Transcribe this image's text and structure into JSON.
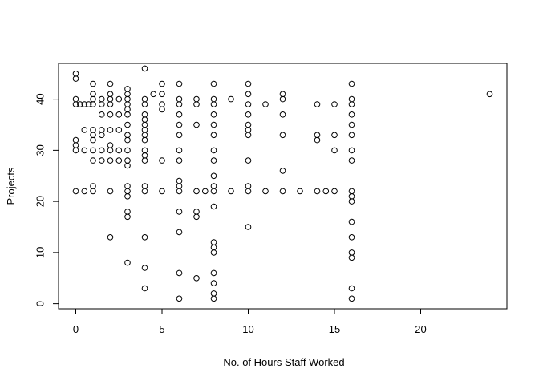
{
  "chart_data": {
    "type": "scatter",
    "title": "",
    "xlabel": "No. of Hours Staff Worked",
    "ylabel": "Projects",
    "xlim": [
      -1,
      25
    ],
    "ylim": [
      -1,
      47
    ],
    "xticks": [
      0,
      5,
      10,
      15,
      20
    ],
    "yticks": [
      0,
      10,
      20,
      30,
      40
    ],
    "grid": false,
    "legend": "none",
    "points": [
      [
        0,
        45
      ],
      [
        0,
        44
      ],
      [
        0,
        40
      ],
      [
        0,
        39
      ],
      [
        0,
        32
      ],
      [
        0,
        31
      ],
      [
        0,
        30
      ],
      [
        0,
        22
      ],
      [
        0.25,
        39
      ],
      [
        0.5,
        39
      ],
      [
        0.5,
        34
      ],
      [
        0.5,
        30
      ],
      [
        0.5,
        22
      ],
      [
        0.75,
        39
      ],
      [
        1,
        43
      ],
      [
        1,
        41
      ],
      [
        1,
        40
      ],
      [
        1,
        39
      ],
      [
        1,
        34
      ],
      [
        1,
        33
      ],
      [
        1,
        32
      ],
      [
        1,
        30
      ],
      [
        1,
        28
      ],
      [
        1,
        23
      ],
      [
        1,
        22
      ],
      [
        1.5,
        40
      ],
      [
        1.5,
        39
      ],
      [
        1.5,
        37
      ],
      [
        1.5,
        34
      ],
      [
        1.5,
        33
      ],
      [
        1.5,
        30
      ],
      [
        1.5,
        28
      ],
      [
        2,
        43
      ],
      [
        2,
        41
      ],
      [
        2,
        40
      ],
      [
        2,
        39
      ],
      [
        2,
        37
      ],
      [
        2,
        34
      ],
      [
        2,
        31
      ],
      [
        2,
        30
      ],
      [
        2,
        28
      ],
      [
        2,
        22
      ],
      [
        2,
        13
      ],
      [
        2.5,
        40
      ],
      [
        2.5,
        37
      ],
      [
        2.5,
        34
      ],
      [
        2.5,
        30
      ],
      [
        2.5,
        28
      ],
      [
        3,
        42
      ],
      [
        3,
        41
      ],
      [
        3,
        40
      ],
      [
        3,
        39
      ],
      [
        3,
        38
      ],
      [
        3,
        37
      ],
      [
        3,
        35
      ],
      [
        3,
        33
      ],
      [
        3,
        32
      ],
      [
        3,
        30
      ],
      [
        3,
        28
      ],
      [
        3,
        27
      ],
      [
        3,
        23
      ],
      [
        3,
        22
      ],
      [
        3,
        21
      ],
      [
        3,
        18
      ],
      [
        3,
        17
      ],
      [
        3,
        8
      ],
      [
        4,
        46
      ],
      [
        4,
        40
      ],
      [
        4,
        39
      ],
      [
        4,
        37
      ],
      [
        4,
        36
      ],
      [
        4,
        35
      ],
      [
        4,
        34
      ],
      [
        4,
        33
      ],
      [
        4,
        32
      ],
      [
        4,
        30
      ],
      [
        4,
        29
      ],
      [
        4,
        28
      ],
      [
        4,
        23
      ],
      [
        4,
        22
      ],
      [
        4,
        13
      ],
      [
        4,
        7
      ],
      [
        4,
        3
      ],
      [
        4.5,
        41
      ],
      [
        5,
        43
      ],
      [
        5,
        41
      ],
      [
        5,
        39
      ],
      [
        5,
        38
      ],
      [
        5,
        28
      ],
      [
        5,
        22
      ],
      [
        6,
        43
      ],
      [
        6,
        40
      ],
      [
        6,
        39
      ],
      [
        6,
        37
      ],
      [
        6,
        35
      ],
      [
        6,
        33
      ],
      [
        6,
        30
      ],
      [
        6,
        28
      ],
      [
        6,
        24
      ],
      [
        6,
        23
      ],
      [
        6,
        22
      ],
      [
        6,
        18
      ],
      [
        6,
        14
      ],
      [
        6,
        6
      ],
      [
        6,
        1
      ],
      [
        7,
        40
      ],
      [
        7,
        39
      ],
      [
        7,
        35
      ],
      [
        7,
        22
      ],
      [
        7,
        18
      ],
      [
        7,
        17
      ],
      [
        7,
        5
      ],
      [
        7.5,
        22
      ],
      [
        8,
        43
      ],
      [
        8,
        40
      ],
      [
        8,
        39
      ],
      [
        8,
        37
      ],
      [
        8,
        35
      ],
      [
        8,
        33
      ],
      [
        8,
        30
      ],
      [
        8,
        28
      ],
      [
        8,
        25
      ],
      [
        8,
        23
      ],
      [
        8,
        22
      ],
      [
        8,
        19
      ],
      [
        8,
        12
      ],
      [
        8,
        11
      ],
      [
        8,
        10
      ],
      [
        8,
        6
      ],
      [
        8,
        4
      ],
      [
        8,
        2
      ],
      [
        8,
        1
      ],
      [
        9,
        40
      ],
      [
        9,
        22
      ],
      [
        10,
        43
      ],
      [
        10,
        41
      ],
      [
        10,
        39
      ],
      [
        10,
        37
      ],
      [
        10,
        35
      ],
      [
        10,
        34
      ],
      [
        10,
        33
      ],
      [
        10,
        28
      ],
      [
        10,
        23
      ],
      [
        10,
        22
      ],
      [
        10,
        15
      ],
      [
        11,
        39
      ],
      [
        11,
        22
      ],
      [
        12,
        41
      ],
      [
        12,
        40
      ],
      [
        12,
        37
      ],
      [
        12,
        33
      ],
      [
        12,
        26
      ],
      [
        12,
        22
      ],
      [
        13,
        22
      ],
      [
        14,
        39
      ],
      [
        14,
        33
      ],
      [
        14,
        32
      ],
      [
        14,
        22
      ],
      [
        14.5,
        22
      ],
      [
        15,
        39
      ],
      [
        15,
        33
      ],
      [
        15,
        30
      ],
      [
        15,
        22
      ],
      [
        16,
        43
      ],
      [
        16,
        40
      ],
      [
        16,
        39
      ],
      [
        16,
        37
      ],
      [
        16,
        35
      ],
      [
        16,
        33
      ],
      [
        16,
        30
      ],
      [
        16,
        28
      ],
      [
        16,
        22
      ],
      [
        16,
        21
      ],
      [
        16,
        20
      ],
      [
        16,
        16
      ],
      [
        16,
        13
      ],
      [
        16,
        10
      ],
      [
        16,
        9
      ],
      [
        16,
        3
      ],
      [
        16,
        1
      ],
      [
        24,
        41
      ]
    ]
  }
}
